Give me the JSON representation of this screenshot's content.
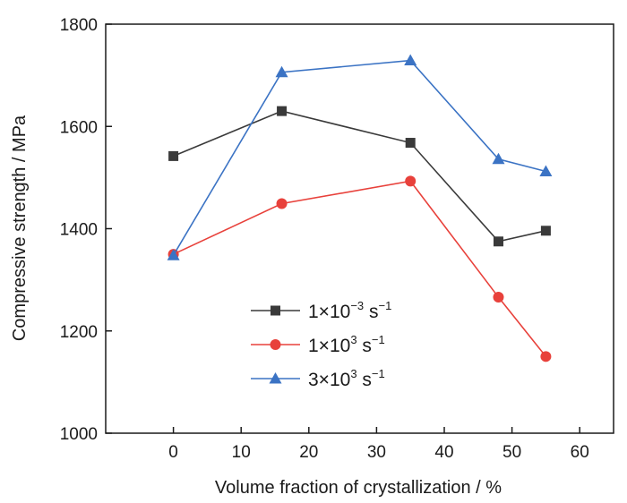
{
  "chart_data": {
    "type": "line",
    "xlabel": "Volume fraction of crystallization / %",
    "ylabel": "Compressive strength / MPa",
    "xlim": [
      -10,
      65
    ],
    "ylim": [
      1000,
      1800
    ],
    "x_ticks": [
      "0",
      "10",
      "20",
      "30",
      "40",
      "50",
      "60"
    ],
    "y_ticks": [
      "1000",
      "1200",
      "1400",
      "1600",
      "1800"
    ],
    "grid": false,
    "legend_position": "lower-center",
    "x": [
      0,
      16,
      35,
      48,
      55
    ],
    "series": [
      {
        "name": "1×10−3 s−1",
        "label_parts": {
          "base": "1×10",
          "exp": "−3",
          "unit": " s",
          "unit_exp": "−1"
        },
        "color": "#3a3a3a",
        "marker": "square",
        "values": [
          1542,
          1630,
          1568,
          1375,
          1396
        ]
      },
      {
        "name": "1×103 s−1",
        "label_parts": {
          "base": "1×10",
          "exp": "3",
          "unit": " s",
          "unit_exp": "−1"
        },
        "color": "#e8413b",
        "marker": "circle",
        "values": [
          1350,
          1449,
          1493,
          1266,
          1150
        ]
      },
      {
        "name": "3×103 s−1",
        "label_parts": {
          "base": "3×10",
          "exp": "3",
          "unit": " s",
          "unit_exp": "−1"
        },
        "color": "#3b73c4",
        "marker": "triangle",
        "values": [
          1348,
          1706,
          1729,
          1536,
          1512
        ]
      }
    ]
  }
}
